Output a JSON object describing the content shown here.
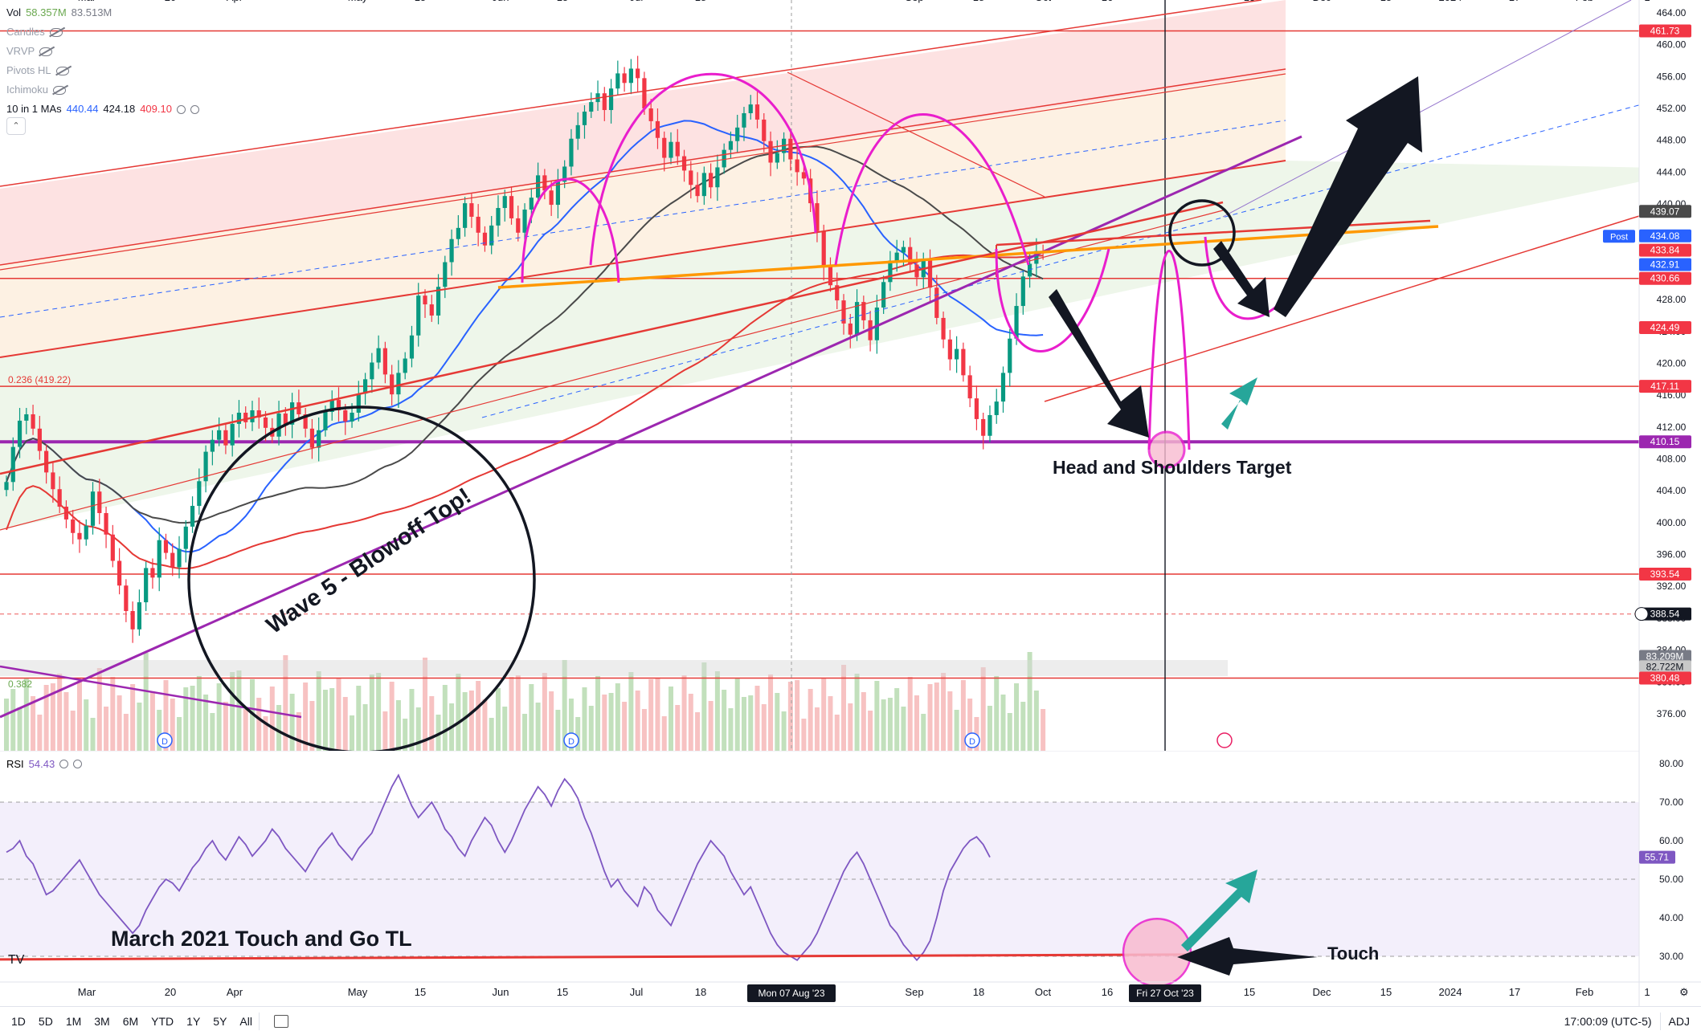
{
  "legend": {
    "vol_label": "Vol",
    "vol_value_1": "58.357M",
    "vol_value_2": "83.513M",
    "candles_label": "Candles",
    "vrvp_label": "VRVP",
    "pivots_label": "Pivots HL",
    "ichimoku_label": "Ichimoku",
    "mas_label": "10 in 1 MAs",
    "ma_value_1": "440.44",
    "ma_value_2": "424.18",
    "ma_value_3": "409.10",
    "collapse_icon": "chevron-up-icon"
  },
  "chart_data": [
    {
      "type": "candlestick",
      "price_axis": {
        "ticks": [
          "464.00",
          "460.00",
          "456.00",
          "452.00",
          "448.00",
          "444.00",
          "440.00",
          "436.00",
          "432.00",
          "428.00",
          "424.00",
          "420.00",
          "416.00",
          "412.00",
          "408.00",
          "404.00",
          "400.00",
          "396.00",
          "392.00",
          "388.00",
          "384.00",
          "380.00",
          "376.00"
        ],
        "ylim": [
          373.5,
          465.5
        ]
      },
      "time_axis": {
        "ticks": [
          "Mar",
          "20",
          "Apr",
          "May",
          "15",
          "Jun",
          "15",
          "Jul",
          "18",
          "Aug",
          "Sep",
          "18",
          "Oct",
          "16",
          "15",
          "Dec",
          "15",
          "2024",
          "17",
          "Feb",
          "1"
        ],
        "crosshair_date_1": "Mon 07 Aug '23",
        "crosshair_date_2": "Fri 27 Oct '23"
      },
      "price_tags": [
        {
          "value": "461.73",
          "color": "#f23645"
        },
        {
          "value": "439.07",
          "color": "#4a4a4a"
        },
        {
          "value": "434.08",
          "color": "#2962ff"
        },
        {
          "value": "433.84",
          "color": "#f23645"
        },
        {
          "value": "432.91",
          "color": "#2962ff"
        },
        {
          "value": "430.66",
          "color": "#f23645"
        },
        {
          "value": "424.49",
          "color": "#f23645"
        },
        {
          "value": "417.11",
          "color": "#f23645"
        },
        {
          "value": "410.15",
          "color": "#9c27b0"
        },
        {
          "value": "393.54",
          "color": "#f23645"
        },
        {
          "value": "388.54",
          "color": "#131722"
        },
        {
          "value": "83.209M",
          "color": "#787b86"
        },
        {
          "value": "82.722M",
          "color": "#c8c8c8"
        },
        {
          "value": "380.48",
          "color": "#f23645"
        }
      ],
      "post_label": "Post",
      "fib_label": "0.236 (419.22)",
      "fib_label_2": "0.382",
      "horizontal_levels": [
        461.73,
        430.66,
        417.11,
        410.15,
        393.54,
        388.54,
        380.48
      ],
      "close_series": [
        405.1,
        409.5,
        412.8,
        413.6,
        411.8,
        409.0,
        406.3,
        404.2,
        402.0,
        400.4,
        398.7,
        397.9,
        399.6,
        403.9,
        401.2,
        398.5,
        395.2,
        392.1,
        388.9,
        386.6,
        390.0,
        394.3,
        393.1,
        397.8,
        396.2,
        394.4,
        396.7,
        399.5,
        402.1,
        405.2,
        408.9,
        410.4,
        411.6,
        409.7,
        412.4,
        413.8,
        412.6,
        414.1,
        413.2,
        411.9,
        410.8,
        413.7,
        412.3,
        415.1,
        413.6,
        411.8,
        409.4,
        411.6,
        413.9,
        415.4,
        414.1,
        412.7,
        413.8,
        416.2,
        418.0,
        420.1,
        421.9,
        418.6,
        416.1,
        418.8,
        420.6,
        423.5,
        428.5,
        427.4,
        426.0,
        429.6,
        432.7,
        435.6,
        437.0,
        440.1,
        438.4,
        436.4,
        434.8,
        437.3,
        439.5,
        441.0,
        438.2,
        436.4,
        439.3,
        440.8,
        443.6,
        441.7,
        439.9,
        442.8,
        444.7,
        448.2,
        449.9,
        451.6,
        452.8,
        453.9,
        451.8,
        454.5,
        456.4,
        455.2,
        457.0,
        455.8,
        452.0,
        450.4,
        448.3,
        445.8,
        447.8,
        446.0,
        444.2,
        442.4,
        441.0,
        443.9,
        442.1,
        444.6,
        446.8,
        447.9,
        449.6,
        451.4,
        452.5,
        450.6,
        447.9,
        445.2,
        446.4,
        448.2,
        445.6,
        444.0,
        443.2,
        440.1,
        436.6,
        432.1,
        429.8,
        427.9,
        425.0,
        423.6,
        427.7,
        425.4,
        422.9,
        427.0,
        430.2,
        432.9,
        433.9,
        434.6,
        432.4,
        430.8,
        433.1,
        429.5,
        425.7,
        423.0,
        420.5,
        421.8,
        418.5,
        415.6,
        413.0,
        410.9,
        413.5,
        415.2,
        418.8,
        423.1,
        427.2,
        430.9,
        432.5,
        434.1,
        433.8
      ],
      "volume_avg_labels": [
        "83.209M",
        "82.722M"
      ],
      "annotations": [
        "Head and Shoulders Target",
        "Wave 5 - Blowoff Top!"
      ]
    },
    {
      "type": "line",
      "title": "RSI",
      "current_value": "54.43",
      "last_value_tag": "55.71",
      "y_ticks": [
        "80.00",
        "70.00",
        "60.00",
        "50.00",
        "40.00",
        "30.00"
      ],
      "ylim": [
        23.5,
        83.5
      ],
      "bands": [
        30,
        50,
        70
      ],
      "values": [
        57,
        58,
        60,
        56,
        54,
        50,
        46,
        47,
        49,
        51,
        53,
        55,
        52,
        49,
        46,
        44,
        42,
        40,
        38,
        36,
        38,
        42,
        45,
        48,
        50,
        49,
        47,
        50,
        53,
        55,
        58,
        60,
        57,
        55,
        58,
        61,
        59,
        56,
        58,
        60,
        63,
        61,
        58,
        56,
        54,
        52,
        55,
        58,
        60,
        62,
        59,
        57,
        55,
        58,
        60,
        62,
        66,
        70,
        74,
        77,
        73,
        69,
        66,
        68,
        70,
        67,
        63,
        61,
        58,
        56,
        60,
        63,
        66,
        64,
        60,
        57,
        60,
        64,
        68,
        71,
        74,
        72,
        69,
        73,
        76,
        74,
        71,
        66,
        62,
        57,
        52,
        48,
        50,
        47,
        45,
        43,
        48,
        46,
        42,
        40,
        38,
        42,
        46,
        50,
        54,
        57,
        60,
        58,
        56,
        52,
        49,
        46,
        48,
        44,
        40,
        36,
        33,
        31,
        30,
        29,
        31,
        33,
        36,
        40,
        44,
        48,
        52,
        55,
        57,
        54,
        50,
        46,
        42,
        38,
        36,
        33,
        31,
        29,
        31,
        34,
        40,
        47,
        52,
        55,
        58,
        60,
        61,
        59,
        55.7
      ],
      "annotations": [
        "March 2021 Touch and Go TL",
        "Touch"
      ]
    }
  ],
  "rsi_legend": {
    "label": "RSI",
    "value": "54.43"
  },
  "toolbar": {
    "timeframes": [
      "1D",
      "5D",
      "1M",
      "3M",
      "6M",
      "YTD",
      "1Y",
      "5Y",
      "All"
    ],
    "time_display": "17:00:09 (UTC-5)",
    "adj_label": "ADJ",
    "calendar_icon": "calendar-range-icon"
  }
}
